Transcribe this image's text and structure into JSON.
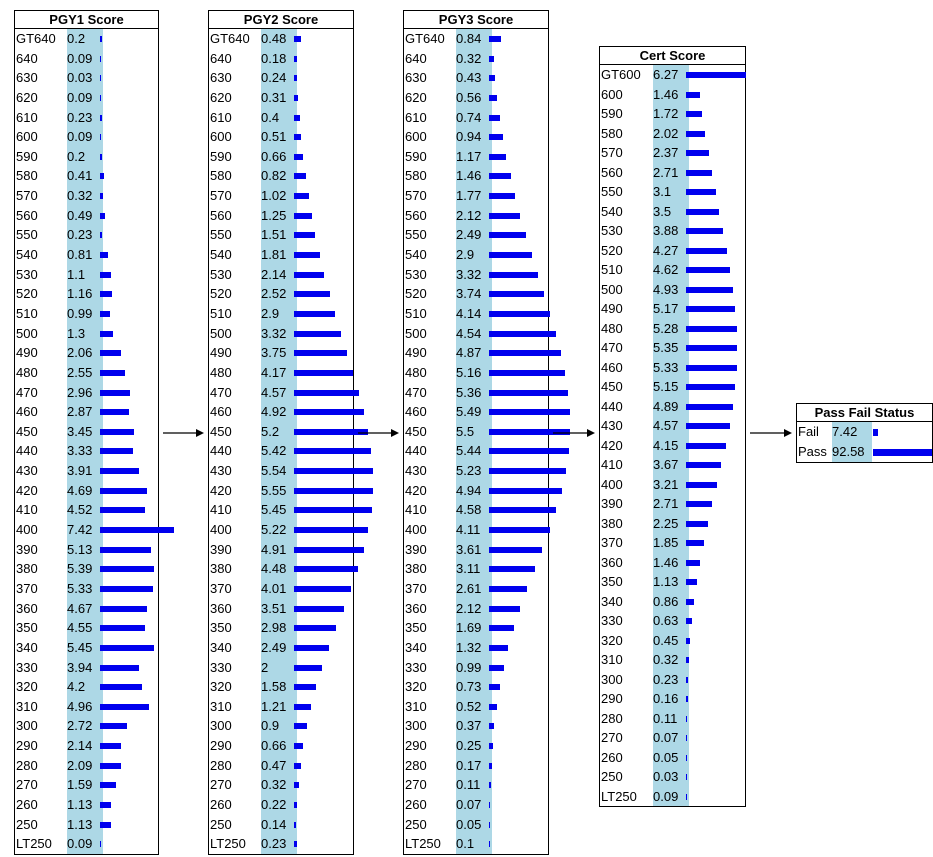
{
  "colors": {
    "bar": "#0000ee",
    "band": "#add8e6",
    "border": "#000000"
  },
  "nodes": [
    {
      "id": "pgy1",
      "title": "PGY1 Score",
      "states": [
        {
          "label": "GT640",
          "value": "0.2"
        },
        {
          "label": "640",
          "value": "0.09"
        },
        {
          "label": "630",
          "value": "0.03"
        },
        {
          "label": "620",
          "value": "0.09"
        },
        {
          "label": "610",
          "value": "0.23"
        },
        {
          "label": "600",
          "value": "0.09"
        },
        {
          "label": "590",
          "value": "0.2"
        },
        {
          "label": "580",
          "value": "0.41"
        },
        {
          "label": "570",
          "value": "0.32"
        },
        {
          "label": "560",
          "value": "0.49"
        },
        {
          "label": "550",
          "value": "0.23"
        },
        {
          "label": "540",
          "value": "0.81"
        },
        {
          "label": "530",
          "value": "1.1"
        },
        {
          "label": "520",
          "value": "1.16"
        },
        {
          "label": "510",
          "value": "0.99"
        },
        {
          "label": "500",
          "value": "1.3"
        },
        {
          "label": "490",
          "value": "2.06"
        },
        {
          "label": "480",
          "value": "2.55"
        },
        {
          "label": "470",
          "value": "2.96"
        },
        {
          "label": "460",
          "value": "2.87"
        },
        {
          "label": "450",
          "value": "3.45"
        },
        {
          "label": "440",
          "value": "3.33"
        },
        {
          "label": "430",
          "value": "3.91"
        },
        {
          "label": "420",
          "value": "4.69"
        },
        {
          "label": "410",
          "value": "4.52"
        },
        {
          "label": "400",
          "value": "7.42"
        },
        {
          "label": "390",
          "value": "5.13"
        },
        {
          "label": "380",
          "value": "5.39"
        },
        {
          "label": "370",
          "value": "5.33"
        },
        {
          "label": "360",
          "value": "4.67"
        },
        {
          "label": "350",
          "value": "4.55"
        },
        {
          "label": "340",
          "value": "5.45"
        },
        {
          "label": "330",
          "value": "3.94"
        },
        {
          "label": "320",
          "value": "4.2"
        },
        {
          "label": "310",
          "value": "4.96"
        },
        {
          "label": "300",
          "value": "2.72"
        },
        {
          "label": "290",
          "value": "2.14"
        },
        {
          "label": "280",
          "value": "2.09"
        },
        {
          "label": "270",
          "value": "1.59"
        },
        {
          "label": "260",
          "value": "1.13"
        },
        {
          "label": "250",
          "value": "1.13"
        },
        {
          "label": "LT250",
          "value": "0.09"
        }
      ]
    },
    {
      "id": "pgy2",
      "title": "PGY2 Score",
      "states": [
        {
          "label": "GT640",
          "value": "0.48"
        },
        {
          "label": "640",
          "value": "0.18"
        },
        {
          "label": "630",
          "value": "0.24"
        },
        {
          "label": "620",
          "value": "0.31"
        },
        {
          "label": "610",
          "value": "0.4"
        },
        {
          "label": "600",
          "value": "0.51"
        },
        {
          "label": "590",
          "value": "0.66"
        },
        {
          "label": "580",
          "value": "0.82"
        },
        {
          "label": "570",
          "value": "1.02"
        },
        {
          "label": "560",
          "value": "1.25"
        },
        {
          "label": "550",
          "value": "1.51"
        },
        {
          "label": "540",
          "value": "1.81"
        },
        {
          "label": "530",
          "value": "2.14"
        },
        {
          "label": "520",
          "value": "2.52"
        },
        {
          "label": "510",
          "value": "2.9"
        },
        {
          "label": "500",
          "value": "3.32"
        },
        {
          "label": "490",
          "value": "3.75"
        },
        {
          "label": "480",
          "value": "4.17"
        },
        {
          "label": "470",
          "value": "4.57"
        },
        {
          "label": "460",
          "value": "4.92"
        },
        {
          "label": "450",
          "value": "5.2"
        },
        {
          "label": "440",
          "value": "5.42"
        },
        {
          "label": "430",
          "value": "5.54"
        },
        {
          "label": "420",
          "value": "5.55"
        },
        {
          "label": "410",
          "value": "5.45"
        },
        {
          "label": "400",
          "value": "5.22"
        },
        {
          "label": "390",
          "value": "4.91"
        },
        {
          "label": "380",
          "value": "4.48"
        },
        {
          "label": "370",
          "value": "4.01"
        },
        {
          "label": "360",
          "value": "3.51"
        },
        {
          "label": "350",
          "value": "2.98"
        },
        {
          "label": "340",
          "value": "2.49"
        },
        {
          "label": "330",
          "value": "2"
        },
        {
          "label": "320",
          "value": "1.58"
        },
        {
          "label": "310",
          "value": "1.21"
        },
        {
          "label": "300",
          "value": "0.9"
        },
        {
          "label": "290",
          "value": "0.66"
        },
        {
          "label": "280",
          "value": "0.47"
        },
        {
          "label": "270",
          "value": "0.32"
        },
        {
          "label": "260",
          "value": "0.22"
        },
        {
          "label": "250",
          "value": "0.14"
        },
        {
          "label": "LT250",
          "value": "0.23"
        }
      ]
    },
    {
      "id": "pgy3",
      "title": "PGY3 Score",
      "states": [
        {
          "label": "GT640",
          "value": "0.84"
        },
        {
          "label": "640",
          "value": "0.32"
        },
        {
          "label": "630",
          "value": "0.43"
        },
        {
          "label": "620",
          "value": "0.56"
        },
        {
          "label": "610",
          "value": "0.74"
        },
        {
          "label": "600",
          "value": "0.94"
        },
        {
          "label": "590",
          "value": "1.17"
        },
        {
          "label": "580",
          "value": "1.46"
        },
        {
          "label": "570",
          "value": "1.77"
        },
        {
          "label": "560",
          "value": "2.12"
        },
        {
          "label": "550",
          "value": "2.49"
        },
        {
          "label": "540",
          "value": "2.9"
        },
        {
          "label": "530",
          "value": "3.32"
        },
        {
          "label": "520",
          "value": "3.74"
        },
        {
          "label": "510",
          "value": "4.14"
        },
        {
          "label": "500",
          "value": "4.54"
        },
        {
          "label": "490",
          "value": "4.87"
        },
        {
          "label": "480",
          "value": "5.16"
        },
        {
          "label": "470",
          "value": "5.36"
        },
        {
          "label": "460",
          "value": "5.49"
        },
        {
          "label": "450",
          "value": "5.5"
        },
        {
          "label": "440",
          "value": "5.44"
        },
        {
          "label": "430",
          "value": "5.23"
        },
        {
          "label": "420",
          "value": "4.94"
        },
        {
          "label": "410",
          "value": "4.58"
        },
        {
          "label": "400",
          "value": "4.11"
        },
        {
          "label": "390",
          "value": "3.61"
        },
        {
          "label": "380",
          "value": "3.11"
        },
        {
          "label": "370",
          "value": "2.61"
        },
        {
          "label": "360",
          "value": "2.12"
        },
        {
          "label": "350",
          "value": "1.69"
        },
        {
          "label": "340",
          "value": "1.32"
        },
        {
          "label": "330",
          "value": "0.99"
        },
        {
          "label": "320",
          "value": "0.73"
        },
        {
          "label": "310",
          "value": "0.52"
        },
        {
          "label": "300",
          "value": "0.37"
        },
        {
          "label": "290",
          "value": "0.25"
        },
        {
          "label": "280",
          "value": "0.17"
        },
        {
          "label": "270",
          "value": "0.11"
        },
        {
          "label": "260",
          "value": "0.07"
        },
        {
          "label": "250",
          "value": "0.05"
        },
        {
          "label": "LT250",
          "value": "0.1"
        }
      ]
    },
    {
      "id": "cert",
      "title": "Cert Score",
      "states": [
        {
          "label": "GT600",
          "value": "6.27"
        },
        {
          "label": "600",
          "value": "1.46"
        },
        {
          "label": "590",
          "value": "1.72"
        },
        {
          "label": "580",
          "value": "2.02"
        },
        {
          "label": "570",
          "value": "2.37"
        },
        {
          "label": "560",
          "value": "2.71"
        },
        {
          "label": "550",
          "value": "3.1"
        },
        {
          "label": "540",
          "value": "3.5"
        },
        {
          "label": "530",
          "value": "3.88"
        },
        {
          "label": "520",
          "value": "4.27"
        },
        {
          "label": "510",
          "value": "4.62"
        },
        {
          "label": "500",
          "value": "4.93"
        },
        {
          "label": "490",
          "value": "5.17"
        },
        {
          "label": "480",
          "value": "5.28"
        },
        {
          "label": "470",
          "value": "5.35"
        },
        {
          "label": "460",
          "value": "5.33"
        },
        {
          "label": "450",
          "value": "5.15"
        },
        {
          "label": "440",
          "value": "4.89"
        },
        {
          "label": "430",
          "value": "4.57"
        },
        {
          "label": "420",
          "value": "4.15"
        },
        {
          "label": "410",
          "value": "3.67"
        },
        {
          "label": "400",
          "value": "3.21"
        },
        {
          "label": "390",
          "value": "2.71"
        },
        {
          "label": "380",
          "value": "2.25"
        },
        {
          "label": "370",
          "value": "1.85"
        },
        {
          "label": "360",
          "value": "1.46"
        },
        {
          "label": "350",
          "value": "1.13"
        },
        {
          "label": "340",
          "value": "0.86"
        },
        {
          "label": "330",
          "value": "0.63"
        },
        {
          "label": "320",
          "value": "0.45"
        },
        {
          "label": "310",
          "value": "0.32"
        },
        {
          "label": "300",
          "value": "0.23"
        },
        {
          "label": "290",
          "value": "0.16"
        },
        {
          "label": "280",
          "value": "0.11"
        },
        {
          "label": "270",
          "value": "0.07"
        },
        {
          "label": "260",
          "value": "0.05"
        },
        {
          "label": "250",
          "value": "0.03"
        },
        {
          "label": "LT250",
          "value": "0.09"
        }
      ]
    },
    {
      "id": "passfail",
      "title": "Pass Fail Status",
      "states": [
        {
          "label": "Fail",
          "value": "7.42"
        },
        {
          "label": "Pass",
          "value": "92.58"
        }
      ]
    }
  ],
  "edges": [
    {
      "from": "pgy1",
      "to": "pgy2"
    },
    {
      "from": "pgy2",
      "to": "pgy3"
    },
    {
      "from": "pgy3",
      "to": "cert"
    },
    {
      "from": "cert",
      "to": "passfail"
    }
  ]
}
